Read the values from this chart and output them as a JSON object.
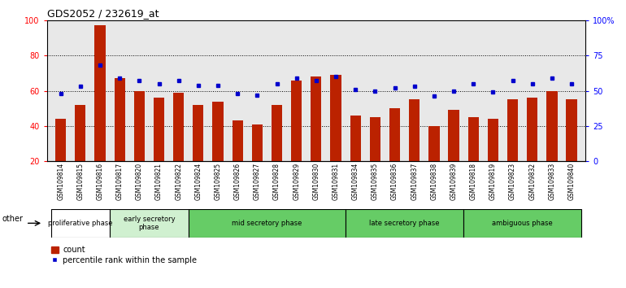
{
  "title": "GDS2052 / 232619_at",
  "samples": [
    "GSM109814",
    "GSM109815",
    "GSM109816",
    "GSM109817",
    "GSM109820",
    "GSM109821",
    "GSM109822",
    "GSM109824",
    "GSM109825",
    "GSM109826",
    "GSM109827",
    "GSM109828",
    "GSM109829",
    "GSM109830",
    "GSM109831",
    "GSM109834",
    "GSM109835",
    "GSM109836",
    "GSM109837",
    "GSM109838",
    "GSM109839",
    "GSM109818",
    "GSM109819",
    "GSM109823",
    "GSM109832",
    "GSM109833",
    "GSM109840"
  ],
  "counts": [
    44,
    52,
    97,
    67,
    60,
    56,
    59,
    52,
    54,
    43,
    41,
    52,
    66,
    68,
    69,
    46,
    45,
    50,
    55,
    40,
    49,
    45,
    44,
    55,
    56,
    60,
    55
  ],
  "percentile_ranks": [
    48,
    53,
    68,
    59,
    57,
    55,
    57,
    54,
    54,
    48,
    47,
    55,
    59,
    57,
    60,
    51,
    50,
    52,
    53,
    46,
    50,
    55,
    49,
    57,
    55,
    59,
    55
  ],
  "phase_configs": [
    {
      "label": "proliferative phase",
      "start": 0,
      "end": 3,
      "color": "#ffffff"
    },
    {
      "label": "early secretory\nphase",
      "start": 3,
      "end": 7,
      "color": "#d0f0d0"
    },
    {
      "label": "mid secretory phase",
      "start": 7,
      "end": 15,
      "color": "#66cc66"
    },
    {
      "label": "late secretory phase",
      "start": 15,
      "end": 21,
      "color": "#66cc66"
    },
    {
      "label": "ambiguous phase",
      "start": 21,
      "end": 27,
      "color": "#66cc66"
    }
  ],
  "bar_color": "#bb2200",
  "dot_color": "#0000cc",
  "ylim_left": [
    20,
    100
  ],
  "ylim_right": [
    0,
    100
  ],
  "yticks_left": [
    20,
    40,
    60,
    80,
    100
  ],
  "yticks_right": [
    0,
    25,
    50,
    75,
    100
  ],
  "ylabel_right_labels": [
    "0",
    "25",
    "50",
    "75",
    "100%"
  ],
  "plot_bg_color": "#e8e8e8",
  "other_label": "other"
}
